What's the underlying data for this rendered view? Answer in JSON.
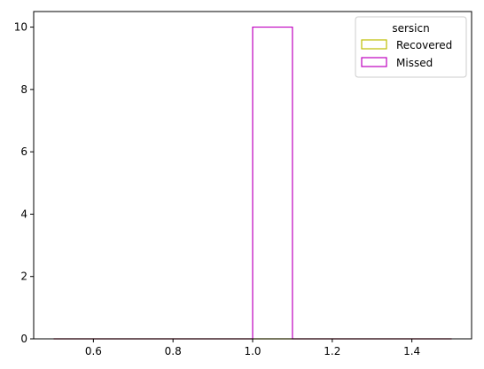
{
  "chart_data": {
    "type": "histogram",
    "title": "",
    "xlabel": "",
    "ylabel": "",
    "xlim": [
      0.45,
      1.55
    ],
    "ylim": [
      0,
      10.5
    ],
    "xticks": [
      0.6,
      0.8,
      1.0,
      1.2,
      1.4
    ],
    "xtick_labels": [
      "0.6",
      "0.8",
      "1.0",
      "1.2",
      "1.4"
    ],
    "yticks": [
      0,
      2,
      4,
      6,
      8,
      10
    ],
    "ytick_labels": [
      "0",
      "2",
      "4",
      "6",
      "8",
      "10"
    ],
    "bin_edges": [
      0.5,
      0.6,
      0.7,
      0.8,
      0.9,
      1.0,
      1.1,
      1.2,
      1.3,
      1.4,
      1.5
    ],
    "series": [
      {
        "name": "Recovered",
        "color": "#bfbf00",
        "counts": [
          0,
          0,
          0,
          0,
          0,
          0,
          0,
          0,
          0,
          0
        ]
      },
      {
        "name": "Missed",
        "color": "#bf00bf",
        "counts": [
          0,
          0,
          0,
          0,
          0,
          10,
          0,
          0,
          0,
          0
        ]
      }
    ],
    "legend": {
      "title": "sersicn",
      "position": "top-right"
    },
    "grid": false
  }
}
